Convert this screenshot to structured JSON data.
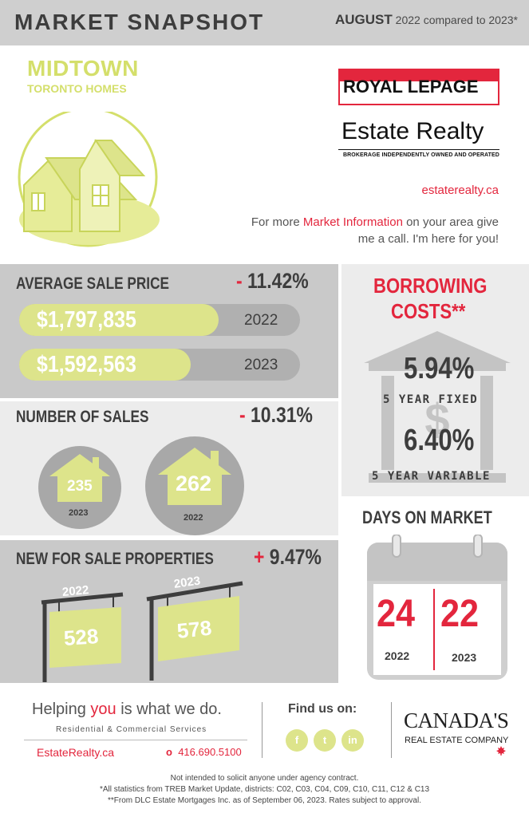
{
  "header": {
    "title": "MARKET SNAPSHOT",
    "month": "AUGUST",
    "comparison": "2022 compared to 2023*"
  },
  "area": {
    "name": "MIDTOWN",
    "subtitle": "TORONTO HOMES"
  },
  "brand": {
    "name_line1": "ROYAL LEPAGE",
    "name_line2": "Estate Realty",
    "tagline": "BROKERAGE INDEPENDENTLY OWNED AND OPERATED",
    "website": "estaterealty.ca"
  },
  "info": {
    "before": "For more ",
    "highlight": "Market Information",
    "after": " on your area give me a call. I'm here for you!"
  },
  "average_sale_price": {
    "title": "AVERAGE SALE PRICE",
    "change_sign": "-",
    "change_value": "11.42%",
    "rows": [
      {
        "value": "$1,797,835",
        "year": "2022",
        "fill": 0.71
      },
      {
        "value": "$1,592,563",
        "year": "2023",
        "fill": 0.61
      }
    ]
  },
  "number_of_sales": {
    "title": "NUMBER OF SALES",
    "change_sign": "-",
    "change_value": "10.31%",
    "items": [
      {
        "count": "235",
        "year": "2023"
      },
      {
        "count": "262",
        "year": "2022"
      }
    ]
  },
  "new_for_sale": {
    "title": "NEW FOR SALE PROPERTIES",
    "change_sign": "+",
    "change_value": "9.47%",
    "items": [
      {
        "year": "2022",
        "count": "528"
      },
      {
        "year": "2023",
        "count": "578"
      }
    ]
  },
  "borrowing": {
    "title_line1": "BORROWING",
    "title_line2": "COSTS**",
    "fixed_rate": "5.94%",
    "fixed_label": "5 YEAR FIXED",
    "variable_rate": "6.40%",
    "variable_label": "5 YEAR VARIABLE"
  },
  "days_on_market": {
    "title": "DAYS ON MARKET",
    "value_2022": "24",
    "year_2022": "2022",
    "value_2023": "22",
    "year_2023": "2023"
  },
  "footer": {
    "slogan_before": "Helping ",
    "slogan_you": "you",
    "slogan_after": " is what we do.",
    "services": "Residential & Commercial Services",
    "site": "EstateRealty.ca",
    "phone_prefix": "o",
    "phone": "416.690.5100",
    "find_us": "Find us on:",
    "social": [
      "f",
      "t",
      "in"
    ],
    "company_line1": "CANADA'S",
    "company_line2": "REAL ESTATE COMPANY"
  },
  "disclaimer": [
    "Not intended to solicit anyone under agency contract.",
    "*All statistics from TREB Market Update, districts: C02, C03, C04, C09, C10, C11, C12 & C13",
    "**From DLC Estate Mortgages Inc. as of September 06, 2023. Rates subject to approval."
  ],
  "colors": {
    "accent_lime": "#dde48b",
    "accent_red": "#e3263d",
    "panel_gray": "#c9c9c9",
    "panel_light": "#ececec"
  }
}
